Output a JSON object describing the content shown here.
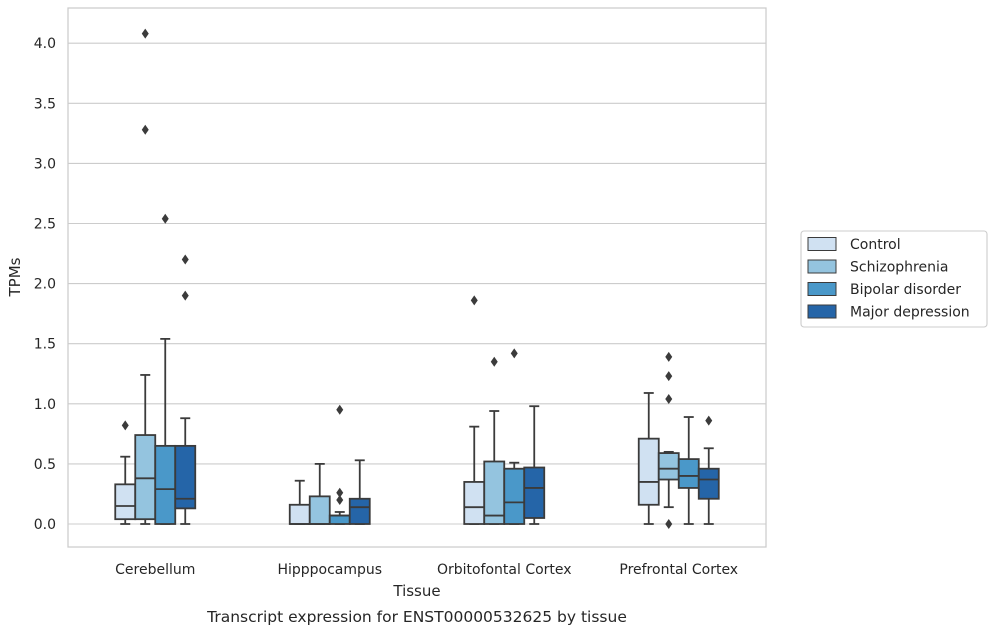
{
  "chart_data": {
    "type": "box",
    "title": "Transcript expression for ENST00000532625 by tissue",
    "xlabel": "Tissue",
    "ylabel": "TPMs",
    "ylim": [
      -0.2,
      4.3
    ],
    "yticks": [
      "0.0",
      "0.5",
      "1.0",
      "1.5",
      "2.0",
      "2.5",
      "3.0",
      "3.5",
      "4.0"
    ],
    "grid": true,
    "legend_position": "right",
    "categories": [
      "Cerebellum",
      "Hipppocampus",
      "Orbitofontal Cortex",
      "Prefrontal Cortex"
    ],
    "series": [
      {
        "name": "Control",
        "color": "#d0e1f2",
        "boxes": [
          {
            "whislo": 0.0,
            "q1": 0.04,
            "med": 0.15,
            "q3": 0.33,
            "whishi": 0.56,
            "fliers": [
              0.82
            ]
          },
          {
            "whislo": 0.0,
            "q1": 0.0,
            "med": 0.0,
            "q3": 0.16,
            "whishi": 0.36,
            "fliers": []
          },
          {
            "whislo": 0.0,
            "q1": 0.0,
            "med": 0.14,
            "q3": 0.35,
            "whishi": 0.81,
            "fliers": [
              1.86
            ]
          },
          {
            "whislo": 0.0,
            "q1": 0.16,
            "med": 0.35,
            "q3": 0.71,
            "whishi": 1.09,
            "fliers": []
          }
        ]
      },
      {
        "name": "Schizophrenia",
        "color": "#94c4df",
        "boxes": [
          {
            "whislo": 0.0,
            "q1": 0.04,
            "med": 0.38,
            "q3": 0.74,
            "whishi": 1.24,
            "fliers": [
              3.28,
              4.08
            ]
          },
          {
            "whislo": 0.0,
            "q1": 0.0,
            "med": 0.0,
            "q3": 0.23,
            "whishi": 0.5,
            "fliers": []
          },
          {
            "whislo": 0.0,
            "q1": 0.0,
            "med": 0.07,
            "q3": 0.52,
            "whishi": 0.94,
            "fliers": [
              1.35
            ]
          },
          {
            "whislo": 0.14,
            "q1": 0.37,
            "med": 0.46,
            "q3": 0.59,
            "whishi": 0.6,
            "fliers": [
              0.0,
              1.04,
              1.23,
              1.39
            ]
          }
        ]
      },
      {
        "name": "Bipolar disorder",
        "color": "#4a98c9",
        "boxes": [
          {
            "whislo": 0.0,
            "q1": 0.0,
            "med": 0.29,
            "q3": 0.65,
            "whishi": 1.54,
            "fliers": [
              2.54
            ]
          },
          {
            "whislo": 0.0,
            "q1": 0.0,
            "med": 0.07,
            "q3": 0.07,
            "whishi": 0.1,
            "fliers": [
              0.2,
              0.26,
              0.95
            ]
          },
          {
            "whislo": 0.0,
            "q1": 0.0,
            "med": 0.18,
            "q3": 0.46,
            "whishi": 0.51,
            "fliers": [
              1.42
            ]
          },
          {
            "whislo": 0.0,
            "q1": 0.3,
            "med": 0.4,
            "q3": 0.54,
            "whishi": 0.89,
            "fliers": []
          }
        ]
      },
      {
        "name": "Major depression",
        "color": "#2565a8",
        "boxes": [
          {
            "whislo": 0.0,
            "q1": 0.13,
            "med": 0.21,
            "q3": 0.65,
            "whishi": 0.88,
            "fliers": [
              1.9,
              2.2
            ]
          },
          {
            "whislo": 0.0,
            "q1": 0.0,
            "med": 0.14,
            "q3": 0.21,
            "whishi": 0.53,
            "fliers": []
          },
          {
            "whislo": 0.0,
            "q1": 0.05,
            "med": 0.3,
            "q3": 0.47,
            "whishi": 0.98,
            "fliers": []
          },
          {
            "whislo": 0.0,
            "q1": 0.21,
            "med": 0.37,
            "q3": 0.46,
            "whishi": 0.63,
            "fliers": [
              0.86
            ]
          }
        ]
      }
    ]
  }
}
